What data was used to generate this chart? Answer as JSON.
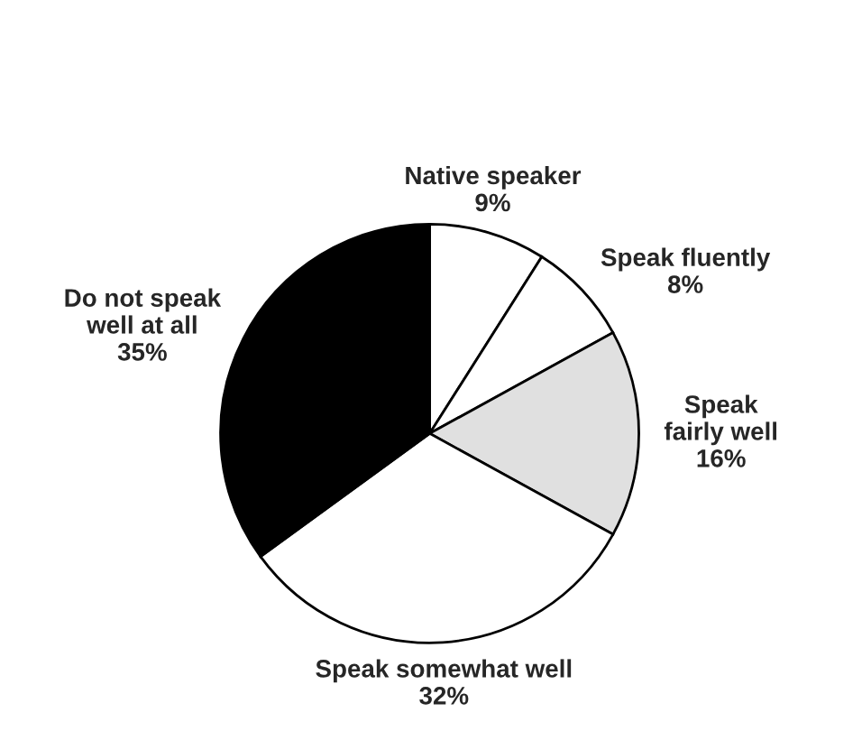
{
  "chart_data": {
    "type": "pie",
    "categories": [
      "Native speaker",
      "Speak fluently",
      "Speak\nfairly well",
      "Speak somewhat well",
      "Do not speak\nwell at all"
    ],
    "values": [
      9,
      8,
      16,
      32,
      35
    ],
    "value_labels": [
      "9%",
      "8%",
      "16%",
      "32%",
      "35%"
    ],
    "colors": [
      "#ffffff",
      "#ffffff",
      "#e0e0e0",
      "#ffffff",
      "#000000"
    ],
    "legend": false
  }
}
